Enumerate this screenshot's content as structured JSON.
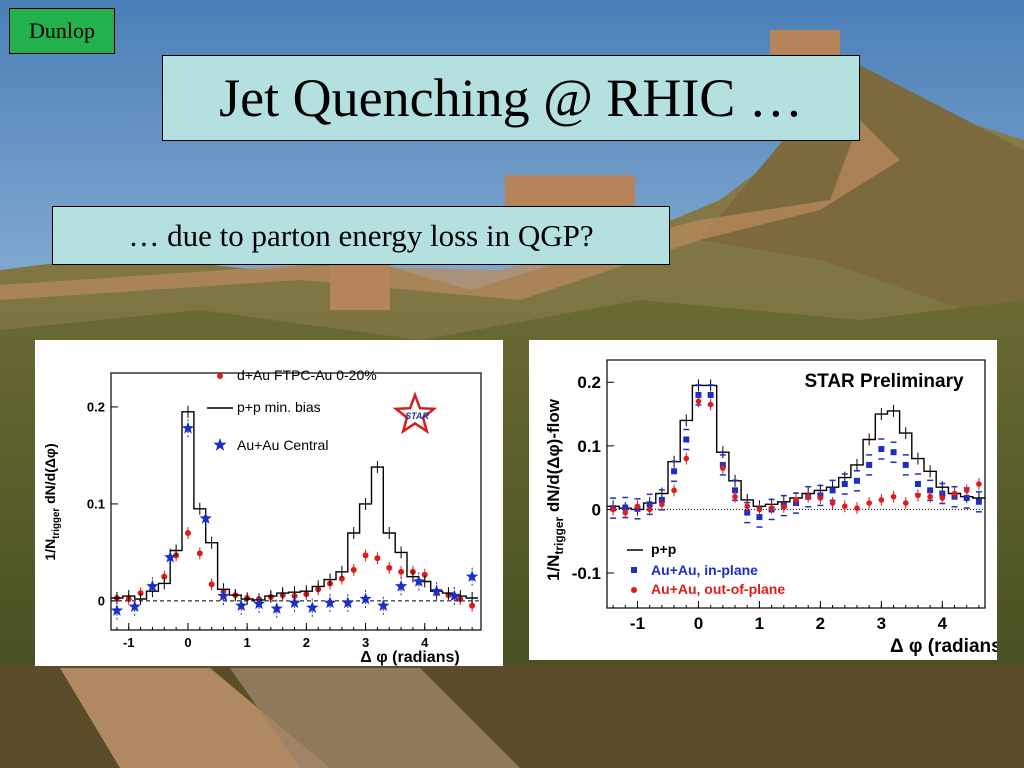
{
  "slide": {
    "author": "Dunlop",
    "title": "Jet Quenching @ RHIC …",
    "subtitle": "… due to parton energy loss in QGP?"
  },
  "colors": {
    "title_box": "#b4e0e0",
    "author_box": "#22b14c",
    "dau_red": "#e01b1b",
    "auau_blue": "#1a2fc8",
    "pp_black": "#000000"
  },
  "chart_data": [
    {
      "type": "scatter",
      "title": "",
      "xlabel": "Δ φ (radians)",
      "ylabel": "1/N_trigger dN/d(Δφ)",
      "ylabel_parts": {
        "a": "1/N",
        "sub": "trigger",
        "b": " dN/d(Δφ)"
      },
      "xlim": [
        -1.3,
        4.95
      ],
      "ylim": [
        -0.03,
        0.235
      ],
      "xticks": [
        -1,
        0,
        1,
        2,
        3,
        4
      ],
      "yticks": [
        0,
        0.1,
        0.2
      ],
      "ytick_labels": [
        "0",
        "0.1",
        "0.2"
      ],
      "grid": false,
      "legend_position": "top-center",
      "logo": "STAR",
      "series": [
        {
          "name": "d+Au FTPC-Au 0-20%",
          "style": "red-dot",
          "x": [
            -1.2,
            -1.0,
            -0.8,
            -0.6,
            -0.4,
            -0.2,
            0.0,
            0.2,
            0.4,
            0.6,
            0.8,
            1.0,
            1.2,
            1.4,
            1.6,
            1.8,
            2.0,
            2.2,
            2.4,
            2.6,
            2.8,
            3.0,
            3.2,
            3.4,
            3.6,
            3.8,
            4.0,
            4.2,
            4.4,
            4.6,
            4.8
          ],
          "y": [
            0.003,
            0.002,
            0.008,
            0.015,
            0.025,
            0.047,
            0.07,
            0.049,
            0.017,
            0.01,
            0.006,
            0.003,
            0.002,
            0.004,
            0.006,
            0.005,
            0.007,
            0.012,
            0.018,
            0.023,
            0.032,
            0.047,
            0.044,
            0.034,
            0.03,
            0.03,
            0.027,
            0.008,
            0.006,
            0.002,
            -0.005
          ]
        },
        {
          "name": "p+p min. bias",
          "style": "black-step",
          "x": [
            -1.2,
            -1.0,
            -0.8,
            -0.6,
            -0.4,
            -0.2,
            0.0,
            0.2,
            0.4,
            0.6,
            0.8,
            1.0,
            1.2,
            1.4,
            1.6,
            1.8,
            2.0,
            2.2,
            2.4,
            2.6,
            2.8,
            3.0,
            3.2,
            3.4,
            3.6,
            3.8,
            4.0,
            4.2,
            4.4,
            4.6,
            4.8
          ],
          "y": [
            0.003,
            0.005,
            0.002,
            0.01,
            0.018,
            0.052,
            0.195,
            0.095,
            0.06,
            0.012,
            0.006,
            0.002,
            0.001,
            0.005,
            0.008,
            0.009,
            0.01,
            0.015,
            0.022,
            0.03,
            0.07,
            0.1,
            0.138,
            0.07,
            0.05,
            0.025,
            0.02,
            0.01,
            0.008,
            0.005,
            0.003
          ]
        },
        {
          "name": "Au+Au Central",
          "style": "blue-star",
          "x": [
            -1.2,
            -0.9,
            -0.6,
            -0.3,
            0.0,
            0.3,
            0.6,
            0.9,
            1.2,
            1.5,
            1.8,
            2.1,
            2.4,
            2.7,
            3.0,
            3.3,
            3.6,
            3.9,
            4.2,
            4.5,
            4.8
          ],
          "y": [
            -0.01,
            -0.006,
            0.015,
            0.045,
            0.178,
            0.085,
            0.005,
            -0.005,
            -0.003,
            -0.008,
            -0.002,
            -0.007,
            -0.002,
            -0.002,
            0.002,
            -0.005,
            0.015,
            0.02,
            0.01,
            0.005,
            0.025
          ]
        }
      ]
    },
    {
      "type": "scatter",
      "title": "STAR Preliminary",
      "xlabel": "Δ φ (radians)",
      "ylabel": "1/N_trigger dN/d(Δφ)-flow",
      "ylabel_parts": {
        "a": "1/N",
        "sub": "trigger",
        "b": " dN/d(Δφ)-flow"
      },
      "xlim": [
        -1.5,
        4.7
      ],
      "ylim": [
        -0.155,
        0.235
      ],
      "xticks": [
        -1,
        0,
        1,
        2,
        3,
        4
      ],
      "yticks": [
        -0.1,
        0,
        0.1,
        0.2
      ],
      "ytick_labels": [
        "-0.1",
        "0",
        "0.1",
        "0.2"
      ],
      "grid": false,
      "legend_position": "bottom-left",
      "series": [
        {
          "name": "p+p",
          "style": "black-step",
          "x": [
            -1.4,
            -1.2,
            -1.0,
            -0.8,
            -0.6,
            -0.4,
            -0.2,
            0.0,
            0.2,
            0.4,
            0.6,
            0.8,
            1.0,
            1.2,
            1.4,
            1.6,
            1.8,
            2.0,
            2.2,
            2.4,
            2.6,
            2.8,
            3.0,
            3.2,
            3.4,
            3.6,
            3.8,
            4.0,
            4.2,
            4.4,
            4.6
          ],
          "y": [
            0.005,
            0.002,
            0.0,
            0.01,
            0.025,
            0.075,
            0.14,
            0.195,
            0.195,
            0.09,
            0.045,
            0.015,
            0.005,
            0.008,
            0.012,
            0.018,
            0.025,
            0.03,
            0.035,
            0.05,
            0.07,
            0.11,
            0.15,
            0.155,
            0.12,
            0.08,
            0.06,
            0.035,
            0.025,
            0.02,
            0.018
          ]
        },
        {
          "name": "Au+Au, in-plane",
          "style": "blue-square",
          "x": [
            -1.4,
            -1.2,
            -1.0,
            -0.8,
            -0.6,
            -0.4,
            -0.2,
            0.0,
            0.2,
            0.4,
            0.6,
            0.8,
            1.0,
            1.2,
            1.4,
            1.6,
            1.8,
            2.0,
            2.2,
            2.4,
            2.6,
            2.8,
            3.0,
            3.2,
            3.4,
            3.6,
            3.8,
            4.0,
            4.2,
            4.4,
            4.6
          ],
          "y": [
            0.002,
            0.003,
            0.001,
            0.008,
            0.015,
            0.06,
            0.11,
            0.18,
            0.18,
            0.07,
            0.03,
            -0.005,
            -0.012,
            0.0,
            0.006,
            0.01,
            0.02,
            0.022,
            0.03,
            0.04,
            0.045,
            0.07,
            0.095,
            0.09,
            0.07,
            0.04,
            0.03,
            0.025,
            0.02,
            0.018,
            0.012
          ]
        },
        {
          "name": "Au+Au, out-of-plane",
          "style": "red-circle",
          "x": [
            -1.4,
            -1.2,
            -1.0,
            -0.8,
            -0.6,
            -0.4,
            -0.2,
            0.0,
            0.2,
            0.4,
            0.6,
            0.8,
            1.0,
            1.2,
            1.4,
            1.6,
            1.8,
            2.0,
            2.2,
            2.4,
            2.6,
            2.8,
            3.0,
            3.2,
            3.4,
            3.6,
            3.8,
            4.0,
            4.2,
            4.4,
            4.6
          ],
          "y": [
            0.0,
            -0.005,
            0.005,
            0.0,
            0.008,
            0.03,
            0.08,
            0.17,
            0.165,
            0.065,
            0.02,
            0.005,
            0.0,
            0.002,
            0.004,
            0.015,
            0.02,
            0.018,
            0.01,
            0.005,
            0.002,
            0.01,
            0.015,
            0.02,
            0.01,
            0.022,
            0.02,
            0.018,
            0.025,
            0.03,
            0.04
          ]
        }
      ]
    }
  ]
}
